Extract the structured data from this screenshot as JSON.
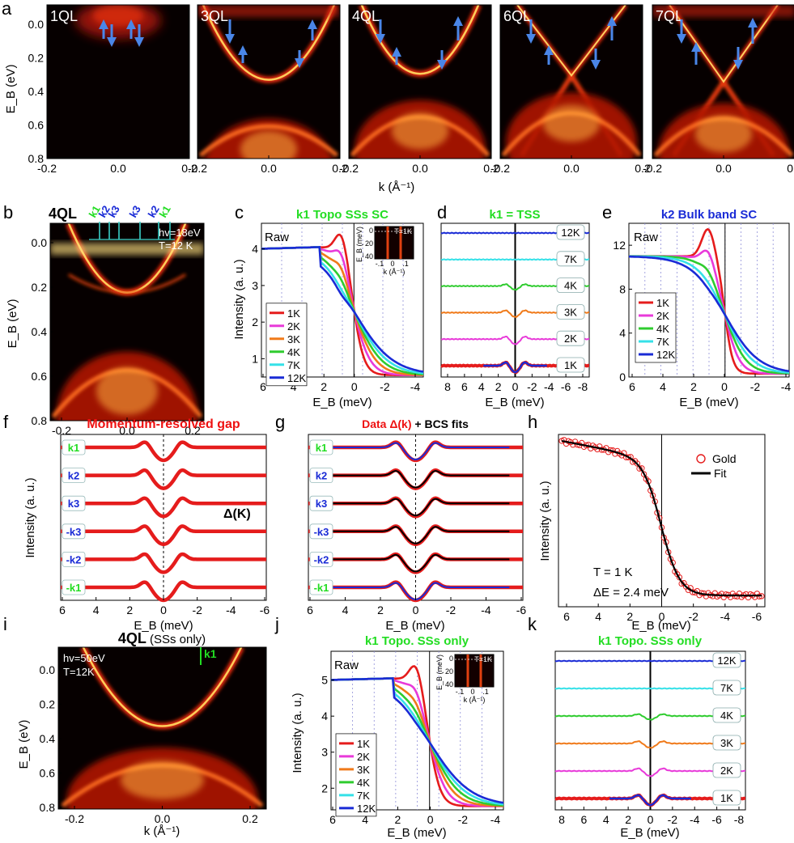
{
  "panel_letters": [
    "a",
    "b",
    "c",
    "d",
    "e",
    "f",
    "g",
    "h",
    "i",
    "j",
    "k"
  ],
  "colors": {
    "red": "#e51c1c",
    "magenta": "#e83ad9",
    "orange": "#f07a1a",
    "green": "#2fcc2f",
    "cyan": "#35e1e8",
    "blue": "#1a2bd6",
    "black": "#000000",
    "arrow": "#4a86e8",
    "label_green": "#22dd22",
    "label_blue": "#1a2bd6",
    "label_red": "#ee1111"
  },
  "chart_data": [
    {
      "id": "a",
      "type": "heatmap",
      "panels": [
        "1QL",
        "3QL",
        "4QL",
        "6QL",
        "7QL"
      ],
      "ylabel": "E_B (eV)",
      "xlabel": "k (Å⁻¹)",
      "yticks": [
        "0.0",
        "0.2",
        "0.4",
        "0.6",
        "0.8"
      ],
      "xticks": [
        "-0.2",
        "0.0",
        "0.2"
      ],
      "xlim": [
        -0.2,
        0.2
      ],
      "ylim": [
        0.0,
        0.8
      ]
    },
    {
      "id": "b",
      "type": "heatmap",
      "title": "4QL",
      "cuts": [
        "k1",
        "k2",
        "k3",
        "k3",
        "k2",
        "k1"
      ],
      "info": [
        "hv=18eV",
        "T=12 K"
      ],
      "ylabel": "E_B (eV)",
      "xlabel": "k (Å⁻¹)",
      "yticks": [
        "0.0",
        "0.2",
        "0.4",
        "0.6",
        "0.8"
      ],
      "xticks": [
        "-0.2",
        "0.0",
        "0.2"
      ]
    },
    {
      "id": "c",
      "type": "line",
      "title": "k1  Topo SSs SC",
      "raw": "Raw",
      "xlabel": "E_B (meV)",
      "ylabel": "Intensity (a. u.)",
      "xlim": [
        6,
        -4.5
      ],
      "ylim": [
        0.5,
        4.7
      ],
      "xticks": [
        "6",
        "4",
        "2",
        "0",
        "-2",
        "-4"
      ],
      "yticks": [
        "1",
        "2",
        "3",
        "4"
      ],
      "series": [
        {
          "name": "1K",
          "color": "red",
          "peak": 4.65,
          "sharp": 0.5
        },
        {
          "name": "2K",
          "color": "magenta",
          "peak": 4.45,
          "sharp": 0.55
        },
        {
          "name": "3K",
          "color": "orange",
          "peak": 4.3,
          "sharp": 0.6
        },
        {
          "name": "4K",
          "color": "green",
          "peak": 4.15,
          "sharp": 0.7
        },
        {
          "name": "7K",
          "color": "cyan",
          "peak": 4.0,
          "sharp": 1.0
        },
        {
          "name": "12K",
          "color": "blue",
          "peak": 3.95,
          "sharp": 1.2
        }
      ],
      "inset": {
        "title": "T=1K",
        "ylabel": "E_B (meV)",
        "yticks": [
          "0",
          "20",
          "40"
        ],
        "xticks": [
          "-.1",
          "0",
          ".1"
        ],
        "xlabel": "k (Å⁻¹)"
      }
    },
    {
      "id": "d",
      "type": "line",
      "title": "k1 = TSS",
      "xlabel": "E_B (meV)",
      "xticks": [
        "8",
        "6",
        "4",
        "2",
        "0",
        "-2",
        "-4",
        "-6",
        "-8"
      ],
      "series": [
        {
          "name": "12K",
          "color": "blue",
          "dip": 0.0
        },
        {
          "name": "7K",
          "color": "cyan",
          "dip": 0.0
        },
        {
          "name": "4K",
          "color": "green",
          "dip": 0.5
        },
        {
          "name": "3K",
          "color": "orange",
          "dip": 0.6
        },
        {
          "name": "2K",
          "color": "magenta",
          "dip": 0.7
        },
        {
          "name": "1K",
          "color": "red",
          "dip": 0.9
        }
      ]
    },
    {
      "id": "e",
      "type": "line",
      "title": "k2 Bulk band SC",
      "raw": "Raw",
      "xlabel": "E_B (meV)",
      "xlim": [
        6,
        -4
      ],
      "ylim": [
        0,
        14
      ],
      "xticks": [
        "6",
        "4",
        "2",
        "0",
        "-2",
        "-4"
      ],
      "yticks": [
        "0",
        "4",
        "8",
        "12"
      ],
      "series": [
        {
          "name": "1K",
          "color": "red",
          "peak": 13.6
        },
        {
          "name": "2K",
          "color": "magenta",
          "peak": 12.3
        },
        {
          "name": "4K",
          "color": "green",
          "peak": 11.4
        },
        {
          "name": "7K",
          "color": "cyan",
          "peak": 11.0
        },
        {
          "name": "12K",
          "color": "blue",
          "peak": 10.9
        }
      ]
    },
    {
      "id": "f",
      "type": "line",
      "title": "Momentum-resolved gap",
      "ylabel": "Intensity (a. u.)",
      "xlabel": "E_B (meV)",
      "xticks": [
        "6",
        "4",
        "2",
        "0",
        "-2",
        "-4",
        "-6"
      ],
      "rows": [
        "k1",
        "k2",
        "k3",
        "-k3",
        "-k2",
        "-k1"
      ],
      "annotation": "Δ(K)"
    },
    {
      "id": "g",
      "type": "line",
      "title_data": "Data Δ(k)",
      "title_fit": " + BCS fits",
      "xlabel": "E_B (meV)",
      "xticks": [
        "6",
        "4",
        "2",
        "0",
        "-2",
        "-4",
        "-6"
      ],
      "rows": [
        "k1",
        "k2",
        "k3",
        "-k3",
        "-k2",
        "-k1"
      ]
    },
    {
      "id": "h",
      "type": "scatter",
      "ylabel": "Intensity (a. u.)",
      "xlabel": "E_B (meV)",
      "xticks": [
        "6",
        "4",
        "2",
        "0",
        "-2",
        "-4",
        "-6"
      ],
      "legend": [
        "Gold",
        "Fit"
      ],
      "annotation": [
        "T = 1 K",
        "ΔE = 2.4 meV"
      ]
    },
    {
      "id": "i",
      "type": "heatmap",
      "title": "4QL",
      "title_note": " (SSs only)",
      "cut": "k1",
      "info": [
        "hv=50eV",
        "T=12K"
      ],
      "ylabel": "E_B (eV)",
      "xlabel": "k (Å⁻¹)",
      "yticks": [
        "0.0",
        "0.2",
        "0.4",
        "0.6",
        "0.8"
      ],
      "xticks": [
        "-0.2",
        "0.0",
        "0.2"
      ]
    },
    {
      "id": "j",
      "type": "line",
      "title": "k1  Topo. SSs only",
      "raw": "Raw",
      "xlabel": "E_B (meV)",
      "ylabel": "Intensity (a. u.)",
      "xlim": [
        6,
        -4.5
      ],
      "ylim": [
        1.4,
        5.8
      ],
      "xticks": [
        "6",
        "4",
        "2",
        "0",
        "-2",
        "-4"
      ],
      "yticks": [
        "2",
        "3",
        "4",
        "5"
      ],
      "series": [
        {
          "name": "1K",
          "color": "red",
          "peak": 5.65
        },
        {
          "name": "2K",
          "color": "magenta",
          "peak": 5.3
        },
        {
          "name": "3K",
          "color": "orange",
          "peak": 5.2
        },
        {
          "name": "4K",
          "color": "green",
          "peak": 5.12
        },
        {
          "name": "7K",
          "color": "cyan",
          "peak": 5.05
        },
        {
          "name": "12K",
          "color": "blue",
          "peak": 5.02
        }
      ],
      "inset": {
        "title": "T=1K",
        "ylabel": "E_B (meV)",
        "yticks": [
          "0",
          "20",
          "40"
        ],
        "xticks": [
          "-.1",
          "0",
          ".1"
        ],
        "xlabel": "k (Å⁻¹)"
      }
    },
    {
      "id": "k",
      "type": "line",
      "title": "k1  Topo. SSs only",
      "xlabel": "E_B (meV)",
      "xticks": [
        "8",
        "6",
        "4",
        "2",
        "0",
        "-2",
        "-4",
        "-6",
        "-8"
      ],
      "series": [
        {
          "name": "12K",
          "color": "blue",
          "dip": 0.0
        },
        {
          "name": "7K",
          "color": "cyan",
          "dip": 0.0
        },
        {
          "name": "4K",
          "color": "green",
          "dip": 0.5
        },
        {
          "name": "3K",
          "color": "orange",
          "dip": 0.6
        },
        {
          "name": "2K",
          "color": "magenta",
          "dip": 0.7
        },
        {
          "name": "1K",
          "color": "red",
          "dip": 0.9
        }
      ]
    }
  ]
}
